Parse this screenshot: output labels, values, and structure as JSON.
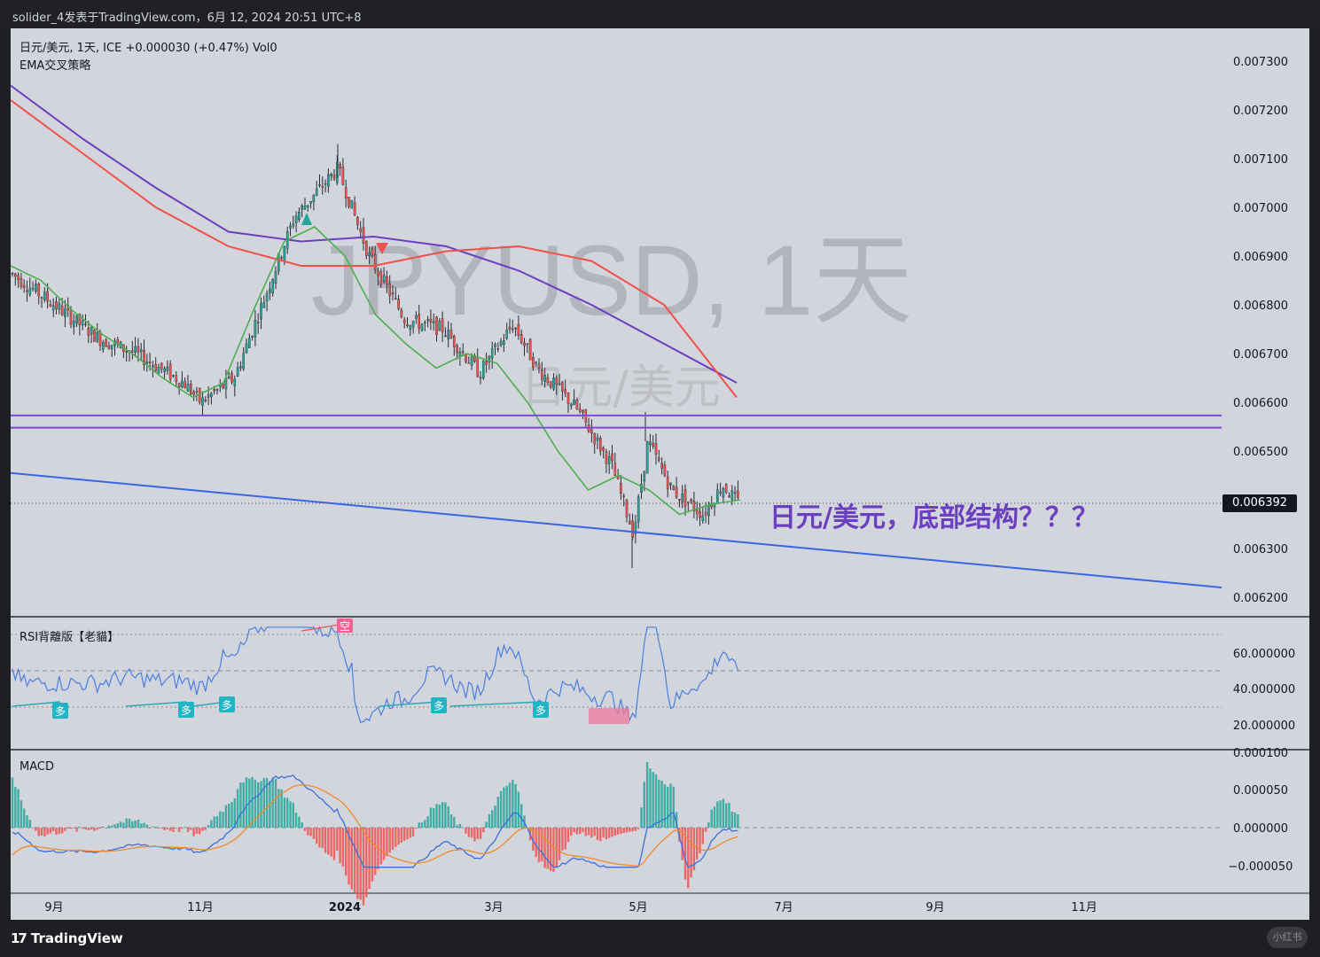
{
  "header": {
    "title": "solider_4发表于TradingView.com，6月 12, 2024 20:51 UTC+8"
  },
  "legend": {
    "symbol_line": "日元/美元, 1天, ICE  +0.000030 (+0.47%)  Vol0",
    "strategy": "EMA交叉策略",
    "rsi_title": "RSI背離版【老貓】",
    "macd_title": "MACD"
  },
  "watermark": {
    "big": "JPYUSD, 1天",
    "small": "日元/美元"
  },
  "annotation": {
    "text": "日元/美元，底部结构？？？"
  },
  "current_price": "0.006392",
  "price_axis": [
    "0.007300",
    "0.007200",
    "0.007100",
    "0.007000",
    "0.006900",
    "0.006800",
    "0.006700",
    "0.006600",
    "0.006500",
    "0.006300",
    "0.006200"
  ],
  "rsi_axis": [
    "60.000000",
    "40.000000",
    "20.000000"
  ],
  "macd_axis": [
    "0.000100",
    "0.000050",
    "0.000000",
    "−0.000050"
  ],
  "time_axis": [
    "9月",
    "11月",
    "2024",
    "3月",
    "5月",
    "7月",
    "9月",
    "11月"
  ],
  "signals": {
    "buy": "多",
    "sell": "空"
  },
  "footer": {
    "brand": "TradingView",
    "badge": "小红书"
  },
  "colors": {
    "background": "#d3d5dc",
    "up": "#26a69a",
    "down": "#ef5350",
    "ema_fast": "#4caf50",
    "ema_mid": "#f0504a",
    "ema_slow": "#6a3fc0",
    "hline": "#7b4ad6",
    "trendline": "#3a66e0",
    "annotation": "#6a3fc0",
    "rsi_line": "#4a7fe0",
    "macd_line": "#3a6fe0",
    "signal_line": "#f08a2a"
  },
  "chart_data": {
    "type": "candlestick",
    "symbol": "JPYUSD",
    "interval": "1天",
    "ylim": [
      0.00617,
      0.00733
    ],
    "x_ticks": [
      "9月",
      "11月",
      "2024",
      "3月",
      "5月",
      "7月",
      "9月",
      "11月"
    ],
    "close_path": [
      {
        "date": "2023-08-01",
        "close": 0.00685
      },
      {
        "date": "2023-08-10",
        "close": 0.00688
      },
      {
        "date": "2023-09-01",
        "close": 0.0068
      },
      {
        "date": "2023-09-20",
        "close": 0.00673
      },
      {
        "date": "2023-10-05",
        "close": 0.0067
      },
      {
        "date": "2023-10-25",
        "close": 0.00664
      },
      {
        "date": "2023-11-01",
        "close": 0.0066
      },
      {
        "date": "2023-11-15",
        "close": 0.00665
      },
      {
        "date": "2023-11-28",
        "close": 0.00682
      },
      {
        "date": "2023-12-10",
        "close": 0.00698
      },
      {
        "date": "2023-12-28",
        "close": 0.00708
      },
      {
        "date": "2024-01-10",
        "close": 0.0069
      },
      {
        "date": "2024-01-25",
        "close": 0.00677
      },
      {
        "date": "2024-02-10",
        "close": 0.00675
      },
      {
        "date": "2024-02-25",
        "close": 0.00666
      },
      {
        "date": "2024-03-10",
        "close": 0.00676
      },
      {
        "date": "2024-03-20",
        "close": 0.00667
      },
      {
        "date": "2024-04-05",
        "close": 0.00659
      },
      {
        "date": "2024-04-20",
        "close": 0.00647
      },
      {
        "date": "2024-04-29",
        "close": 0.00633
      },
      {
        "date": "2024-05-05",
        "close": 0.00652
      },
      {
        "date": "2024-05-15",
        "close": 0.00642
      },
      {
        "date": "2024-05-28",
        "close": 0.00637
      },
      {
        "date": "2024-06-05",
        "close": 0.00643
      },
      {
        "date": "2024-06-12",
        "close": 0.006392
      }
    ],
    "ema_fast_series": [
      0.00688,
      0.00685,
      0.00679,
      0.00674,
      0.0067,
      0.00665,
      0.00661,
      0.00664,
      0.00679,
      0.00693,
      0.00696,
      0.0069,
      0.00678,
      0.00672,
      0.00667,
      0.0067,
      0.00668,
      0.0066,
      0.0065,
      0.00642,
      0.00645,
      0.00642,
      0.00637,
      0.00639,
      0.0064
    ],
    "ema_mid_series": [
      0.00722,
      0.00711,
      0.007,
      0.00692,
      0.00688,
      0.00688,
      0.00691,
      0.00692,
      0.00689,
      0.0068,
      0.00661
    ],
    "ema_slow_series": [
      0.00725,
      0.00714,
      0.00704,
      0.00695,
      0.00693,
      0.00694,
      0.00692,
      0.00687,
      0.0068,
      0.00672,
      0.00664
    ],
    "horizontal_lines": [
      0.006573,
      0.006548
    ],
    "trendline": {
      "start": 0.006455,
      "end": 0.00622
    },
    "rsi": {
      "levels": [
        70,
        50,
        30
      ]
    },
    "macd": {
      "range": [
        -5.5e-05,
        8e-05
      ]
    }
  }
}
